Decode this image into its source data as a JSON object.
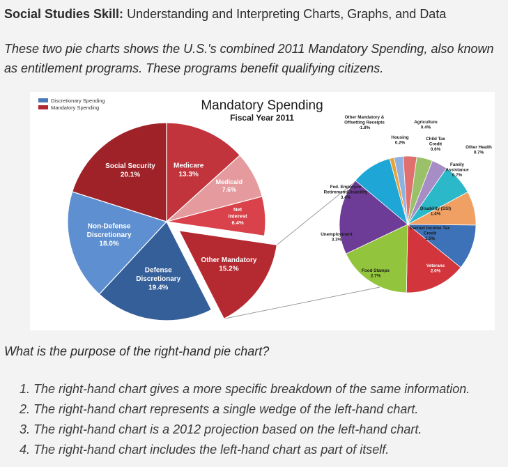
{
  "heading": {
    "bold": "Social Studies Skill:",
    "rest": " Understanding and Interpreting Charts, Graphs, and Data"
  },
  "intro": "These two pie charts shows the U.S.'s combined 2011 Mandatory Spending, also known as entitlement programs. These programs benefit qualifying citizens.",
  "question": "What is the purpose of the right-hand pie chart?",
  "options": [
    "1. The right-hand chart gives a more specific breakdown of the same information.",
    "2. The right-hand chart represents a single wedge of the left-hand chart.",
    "3. The right-hand chart is a 2012 projection based on the left-hand chart.",
    "4. The right-hand chart includes the left-hand chart as part of itself."
  ],
  "chart_data": [
    {
      "type": "pie",
      "title": "Mandatory Spending",
      "subtitle": "Fiscal Year 2011",
      "legend": {
        "placement": "top-left",
        "entries": [
          {
            "name": "Discretionary Spending",
            "color": "#4a78b8"
          },
          {
            "name": "Mandatory Spending",
            "color": "#b0282e"
          }
        ]
      },
      "slices": [
        {
          "label": "Medicare",
          "value": 13.3,
          "display": "13.3%",
          "color": "#c1343b"
        },
        {
          "label": "Medicaid",
          "value": 7.6,
          "display": "7.6%",
          "color": "#e59a9d"
        },
        {
          "label": "Net Interest",
          "value": 6.4,
          "display": "6.4%",
          "color": "#d9424a"
        },
        {
          "label": "Other Mandatory",
          "value": 15.2,
          "display": "15.2%",
          "color": "#b52a31",
          "exploded": true
        },
        {
          "label": "Defense Discretionary",
          "value": 19.4,
          "display": "19.4%",
          "color": "#355f99"
        },
        {
          "label": "Non-Defense Discretionary",
          "value": 18.0,
          "display": "18.0%",
          "color": "#5e8fd0"
        },
        {
          "label": "Social Security",
          "value": 20.1,
          "display": "20.1%",
          "color": "#9f2228"
        }
      ]
    },
    {
      "type": "pie",
      "title": "",
      "slices": [
        {
          "label": "Other Mandatory & Offsetting Receipts",
          "value": 1.8,
          "display": "-1.8%",
          "color": "#1ea7d6"
        },
        {
          "label": "Housing",
          "value": 0.2,
          "display": "0.2%",
          "color": "#e8a23a"
        },
        {
          "label": "Agriculture",
          "value": 0.4,
          "display": "0.4%",
          "color": "#8fb1e2"
        },
        {
          "label": "Child Tax Credit",
          "value": 0.6,
          "display": "0.6%",
          "color": "#e07070"
        },
        {
          "label": "Other Health",
          "value": 0.7,
          "display": "0.7%",
          "color": "#9bc06a"
        },
        {
          "label": "Family Assistance",
          "value": 0.7,
          "display": "0.7%",
          "color": "#a68dc6"
        },
        {
          "label": "Disability (SSI)",
          "value": 1.4,
          "display": "1.4%",
          "color": "#2bb8c9"
        },
        {
          "label": "Earned Income Tax Credit",
          "value": 1.5,
          "display": "1.5%",
          "color": "#f1a064"
        },
        {
          "label": "Veterans",
          "value": 2.0,
          "display": "2.0%",
          "color": "#3d72b8"
        },
        {
          "label": "Food Stamps",
          "value": 2.7,
          "display": "2.7%",
          "color": "#d2363c"
        },
        {
          "label": "Unemployment",
          "value": 3.3,
          "display": "3.3%",
          "color": "#93c43d"
        },
        {
          "label": "Fed. Employee Retirement/Disability",
          "value": 3.4,
          "display": "3.4%",
          "color": "#6d3c96"
        }
      ]
    }
  ]
}
